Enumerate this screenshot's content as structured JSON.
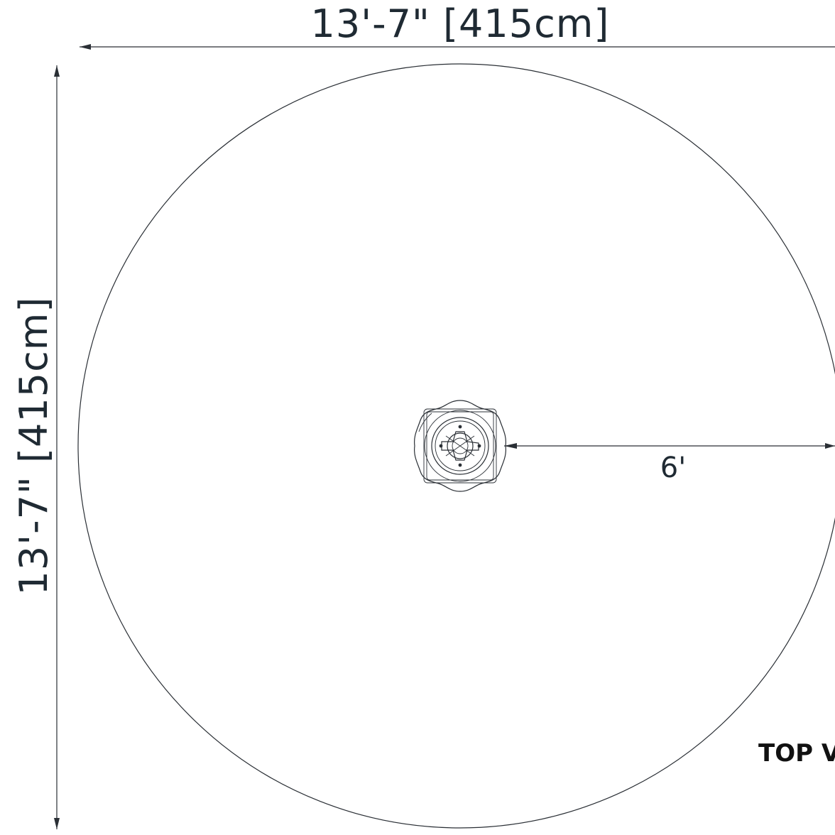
{
  "dimensions": {
    "width_label": "13'-7\" [415cm]",
    "height_label": "13'-7\" [415cm]",
    "radius_label": "6'"
  },
  "view": {
    "title": "TOP V"
  },
  "icons": {
    "center_fixture": "spinner-fixture-icon"
  },
  "colors": {
    "ink": "#2a2f35",
    "text": "#1f2a33",
    "background": "#ffffff"
  }
}
